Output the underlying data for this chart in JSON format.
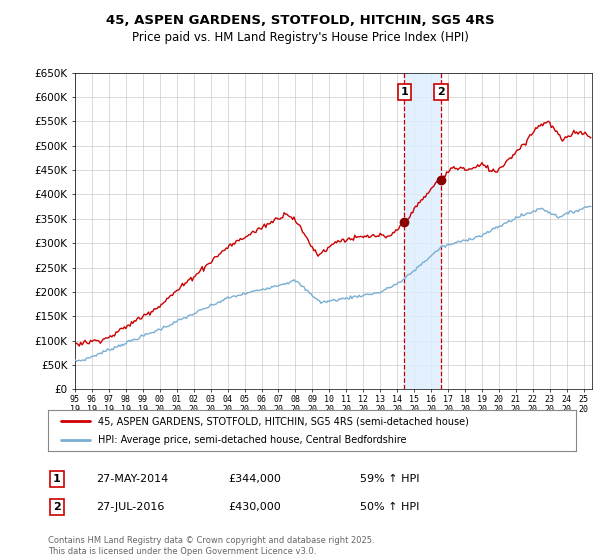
{
  "title": "45, ASPEN GARDENS, STOTFOLD, HITCHIN, SG5 4RS",
  "subtitle": "Price paid vs. HM Land Registry's House Price Index (HPI)",
  "red_label": "45, ASPEN GARDENS, STOTFOLD, HITCHIN, SG5 4RS (semi-detached house)",
  "blue_label": "HPI: Average price, semi-detached house, Central Bedfordshire",
  "transaction1": {
    "date": "27-MAY-2014",
    "price": 344000,
    "hpi_change": "59% ↑ HPI"
  },
  "transaction2": {
    "date": "27-JUL-2016",
    "price": 430000,
    "hpi_change": "50% ↑ HPI"
  },
  "footnote": "Contains HM Land Registry data © Crown copyright and database right 2025.\nThis data is licensed under the Open Government Licence v3.0.",
  "ylim": [
    0,
    650000
  ],
  "ytick_step": 50000,
  "background_color": "#ffffff",
  "grid_color": "#cccccc",
  "red_color": "#cc0000",
  "blue_color": "#7aafd4",
  "shade_color": "#ddeeff",
  "dashed_color": "#cc0000",
  "marker_color": "#880000",
  "box_color": "#cc0000",
  "xstart": 1995,
  "xend": 2025
}
